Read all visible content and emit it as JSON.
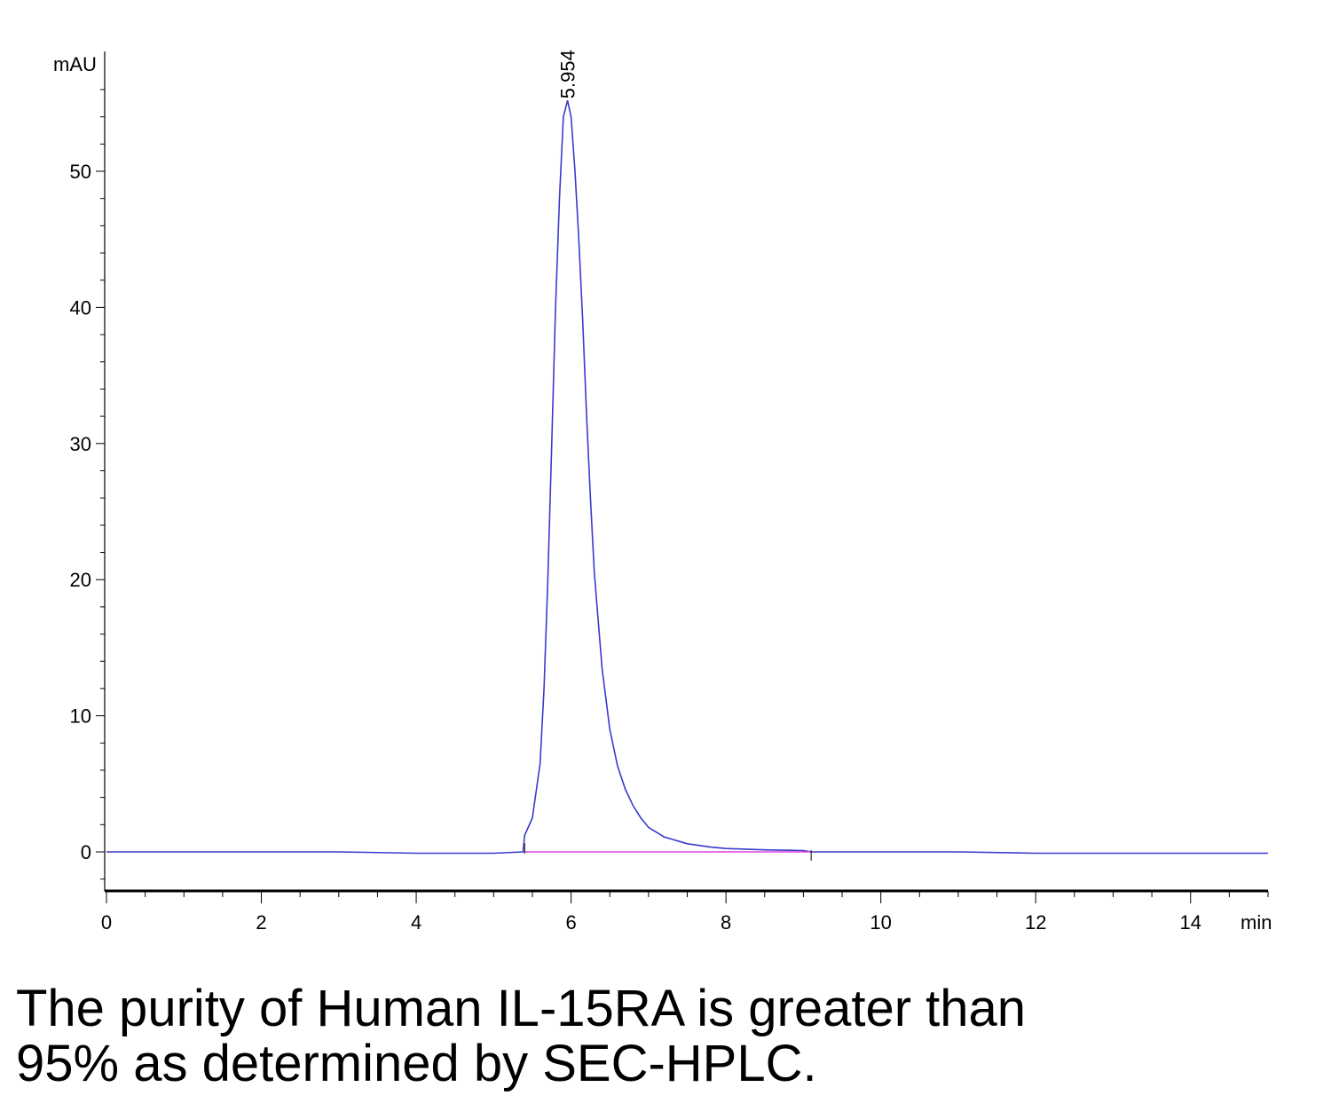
{
  "caption": {
    "line1": "The purity of Human IL-15RA is greater than",
    "line2": "95% as determined by SEC-HPLC."
  },
  "chart_data": {
    "type": "line",
    "title": "",
    "xlabel": "min",
    "ylabel": "mAU",
    "xlim": [
      0,
      15
    ],
    "ylim": [
      -3,
      58
    ],
    "x_ticks": [
      0,
      2,
      4,
      6,
      8,
      10,
      12,
      14
    ],
    "y_ticks": [
      0,
      10,
      20,
      30,
      40,
      50
    ],
    "x_tick_labels": [
      "0",
      "2",
      "4",
      "6",
      "8",
      "10",
      "12",
      "14"
    ],
    "y_tick_labels": [
      "0",
      "10",
      "20",
      "30",
      "40",
      "50"
    ],
    "grid": false,
    "colors": {
      "signal": "#3a3acd",
      "baseline": "#e040e0",
      "axis": "#000000"
    },
    "peaks": [
      {
        "label": "5.954",
        "x": 5.954,
        "y": 55.2
      }
    ],
    "series": [
      {
        "x": [
          0,
          1,
          2,
          3,
          4,
          4.5,
          5,
          5.38,
          5.4,
          5.5,
          5.6,
          5.65,
          5.7,
          5.75,
          5.8,
          5.85,
          5.9,
          5.954,
          6.0,
          6.05,
          6.1,
          6.15,
          6.2,
          6.25,
          6.3,
          6.4,
          6.5,
          6.6,
          6.7,
          6.8,
          6.9,
          7.0,
          7.2,
          7.5,
          7.8,
          8.0,
          8.5,
          9.0,
          9.1,
          10,
          11,
          12,
          13,
          14,
          15
        ],
        "y": [
          0,
          0,
          0,
          0,
          -0.1,
          -0.1,
          -0.1,
          0,
          1.2,
          2.5,
          6.5,
          12,
          20,
          30,
          40,
          48,
          54,
          55.2,
          54,
          50,
          45,
          39,
          32,
          26,
          20.5,
          13.5,
          9,
          6.3,
          4.6,
          3.4,
          2.5,
          1.8,
          1.1,
          0.6,
          0.35,
          0.25,
          0.15,
          0.1,
          0,
          0,
          0,
          -0.1,
          -0.1,
          -0.1,
          -0.1
        ]
      },
      {
        "x": [
          5.4,
          9.1
        ],
        "y": [
          0,
          0
        ]
      }
    ]
  }
}
